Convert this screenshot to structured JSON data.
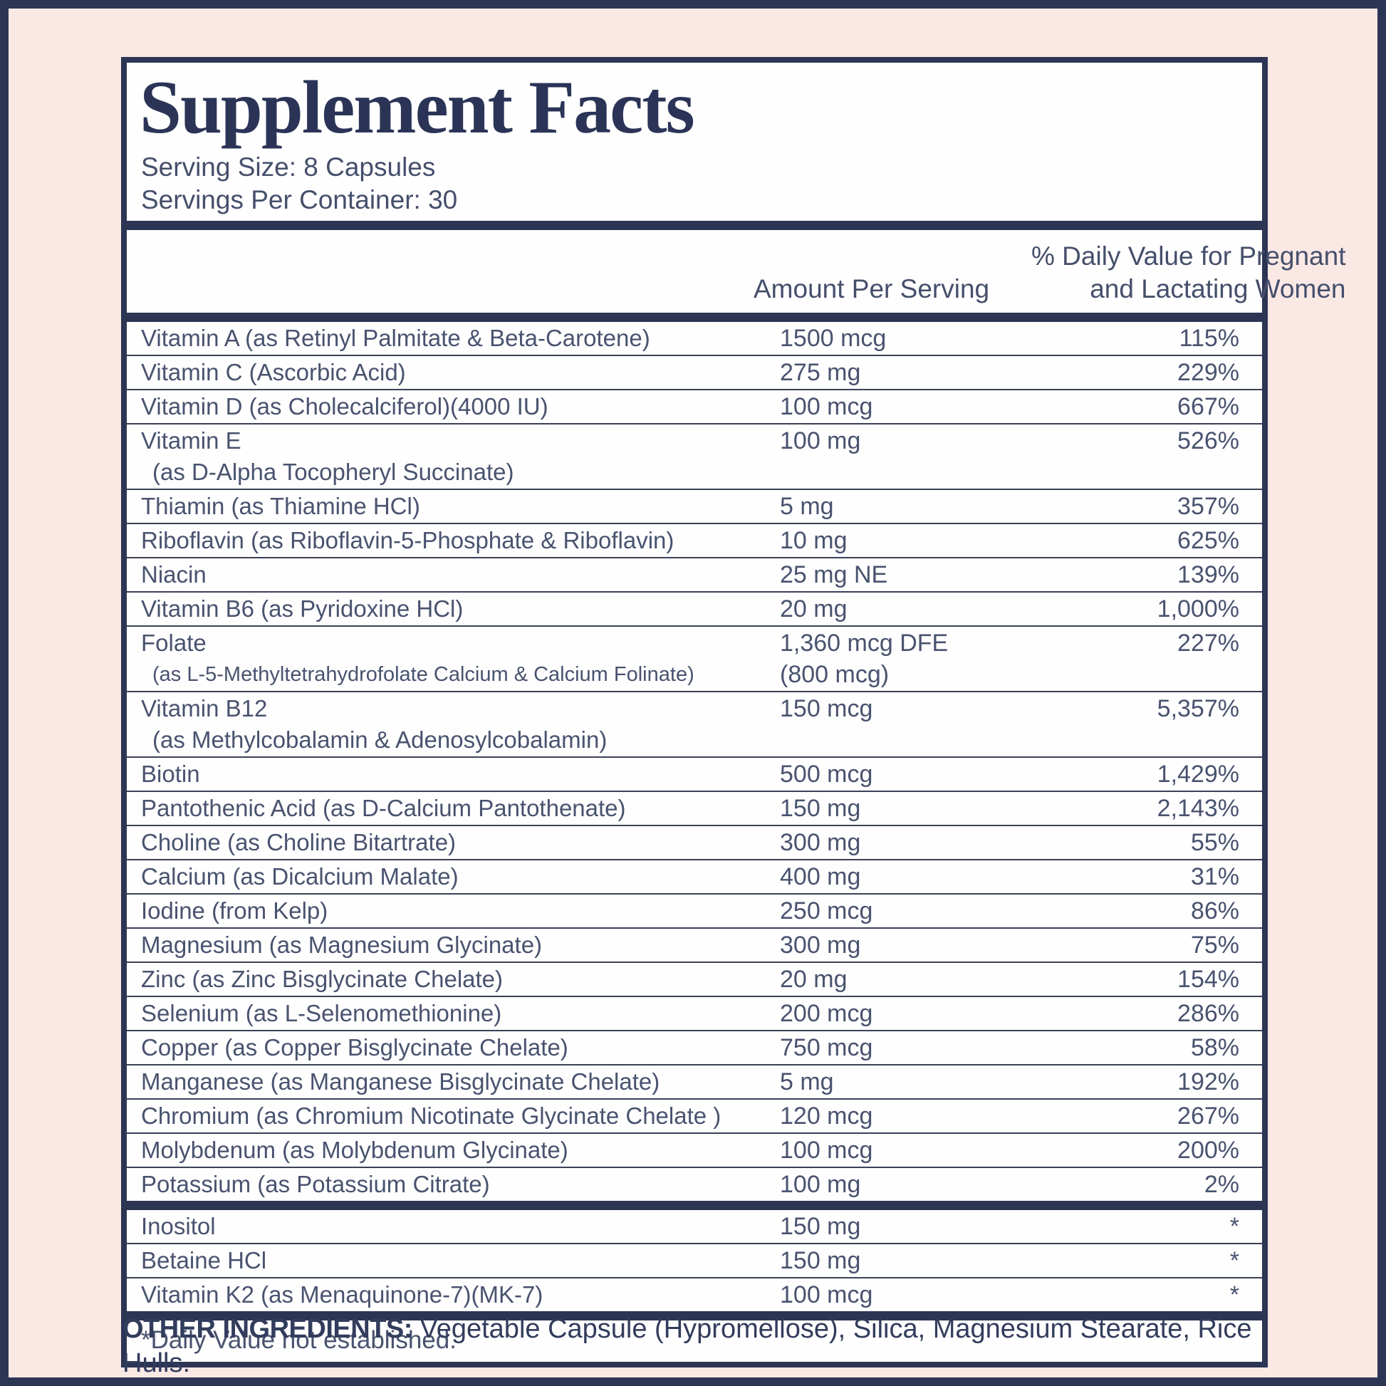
{
  "colors": {
    "navy": "#2c3554",
    "text": "#49536f",
    "line": "#3a4156",
    "pink": "#fae8e5",
    "panelbg": "#fefefe"
  },
  "label": {
    "title": "Supplement Facts",
    "serving_size": "Serving Size: 8 Capsules",
    "servings_per_container": "Servings Per Container: 30",
    "columns": {
      "amount": "Amount Per Serving",
      "dv_line1": "% Daily Value for Pregnant",
      "dv_line2": "and Lactating Women"
    },
    "rows": [
      {
        "name": "Vitamin A (as Retinyl Palmitate & Beta-Carotene)",
        "amount": "1500 mcg",
        "dv": "115%"
      },
      {
        "name": "Vitamin C (Ascorbic Acid)",
        "amount": "275 mg",
        "dv": "229%"
      },
      {
        "name": "Vitamin D (as Cholecalciferol)(4000 IU)",
        "amount": "100 mcg",
        "dv": "667%"
      },
      {
        "name": "Vitamin E",
        "name2": "(as D-Alpha Tocopheryl Succinate)",
        "amount": "100 mg",
        "dv": "526%"
      },
      {
        "name": "Thiamin (as Thiamine HCl)",
        "amount": "5 mg",
        "dv": "357%"
      },
      {
        "name": "Riboflavin (as Riboflavin-5-Phosphate & Riboflavin)",
        "amount": "10 mg",
        "dv": "625%"
      },
      {
        "name": "Niacin",
        "amount": "25 mg NE",
        "dv": "139%"
      },
      {
        "name": "Vitamin B6 (as Pyridoxine HCl)",
        "amount": "20 mg",
        "dv": "1,000%"
      },
      {
        "name": "Folate",
        "name2": "(as L-5-Methyltetrahydrofolate Calcium & Calcium Folinate)",
        "amount": "1,360 mcg DFE",
        "amount2": "(800 mcg)",
        "dv": "227%"
      },
      {
        "name": "Vitamin B12",
        "name2": "(as Methylcobalamin & Adenosylcobalamin)",
        "amount": "150 mcg",
        "dv": "5,357%"
      },
      {
        "name": "Biotin",
        "amount": "500 mcg",
        "dv": "1,429%"
      },
      {
        "name": "Pantothenic Acid (as D-Calcium Pantothenate)",
        "amount": "150 mg",
        "dv": "2,143%"
      },
      {
        "name": "Choline (as Choline Bitartrate)",
        "amount": "300 mg",
        "dv": "55%"
      },
      {
        "name": "Calcium (as Dicalcium Malate)",
        "amount": "400 mg",
        "dv": "31%"
      },
      {
        "name": "Iodine (from Kelp)",
        "amount": "250 mcg",
        "dv": "86%"
      },
      {
        "name": "Magnesium (as Magnesium Glycinate)",
        "amount": "300 mg",
        "dv": "75%"
      },
      {
        "name": "Zinc (as Zinc Bisglycinate Chelate)",
        "amount": "20 mg",
        "dv": "154%"
      },
      {
        "name": "Selenium (as L-Selenomethionine)",
        "amount": "200 mcg",
        "dv": "286%"
      },
      {
        "name": "Copper (as Copper Bisglycinate Chelate)",
        "amount": "750 mcg",
        "dv": "58%"
      },
      {
        "name": "Manganese (as Manganese Bisglycinate Chelate)",
        "amount": "5 mg",
        "dv": "192%"
      },
      {
        "name": "Chromium (as Chromium Nicotinate Glycinate Chelate )",
        "amount": "120 mcg",
        "dv": "267%"
      },
      {
        "name": "Molybdenum (as Molybdenum Glycinate)",
        "amount": "100 mcg",
        "dv": "200%"
      },
      {
        "name": "Potassium (as Potassium Citrate)",
        "amount": "100 mg",
        "dv": "2%"
      }
    ],
    "secondary_rows": [
      {
        "name": "Inositol",
        "amount": "150 mg",
        "dv": "*"
      },
      {
        "name": "Betaine HCl",
        "amount": "150 mg",
        "dv": "*"
      },
      {
        "name": "Vitamin K2 (as Menaquinone-7)(MK-7)",
        "amount": "100 mcg",
        "dv": "*"
      }
    ],
    "footnote": "*Daily Value not established.",
    "other_ingredients_label": "OTHER INGREDIENTS:",
    "other_ingredients": "Vegetable Capsule (Hypromellose), Silica, Magnesium Stearate, Rice Hulls."
  }
}
